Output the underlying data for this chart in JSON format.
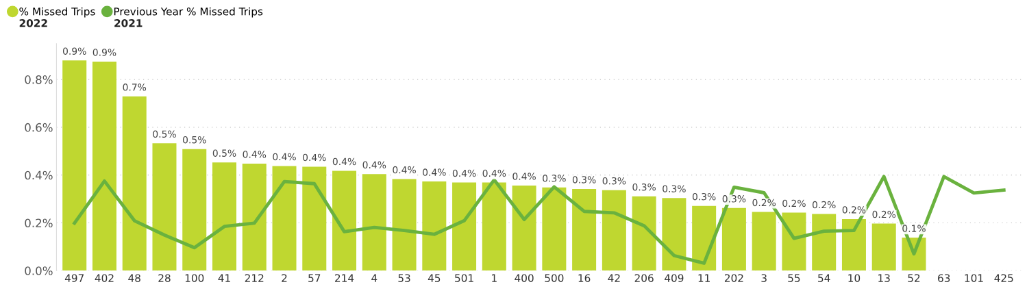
{
  "chart_data": {
    "type": "bar",
    "categories": [
      "497",
      "402",
      "48",
      "28",
      "100",
      "41",
      "212",
      "2",
      "57",
      "214",
      "4",
      "53",
      "45",
      "501",
      "1",
      "400",
      "500",
      "16",
      "42",
      "206",
      "409",
      "11",
      "202",
      "3",
      "55",
      "54",
      "10",
      "13",
      "52",
      "63",
      "101",
      "425"
    ],
    "series": [
      {
        "name": "% Missed Trips",
        "color": "#bfd730",
        "values": [
          0.88,
          0.875,
          0.729,
          0.533,
          0.509,
          0.453,
          0.448,
          0.438,
          0.435,
          0.418,
          0.404,
          0.383,
          0.373,
          0.369,
          0.369,
          0.356,
          0.348,
          0.342,
          0.337,
          0.311,
          0.304,
          0.271,
          0.262,
          0.246,
          0.243,
          0.237,
          0.216,
          0.197,
          0.138,
          null,
          null,
          null
        ],
        "value_labels": [
          "0.9%",
          "0.9%",
          "0.7%",
          "0.5%",
          "0.5%",
          "0.5%",
          "0.4%",
          "0.4%",
          "0.4%",
          "0.4%",
          "0.4%",
          "0.4%",
          "0.4%",
          "0.4%",
          "0.4%",
          "0.4%",
          "0.3%",
          "0.3%",
          "0.3%",
          "0.3%",
          "0.3%",
          "0.3%",
          "0.3%",
          "0.2%",
          "0.2%",
          "0.2%",
          "0.2%",
          "0.2%",
          "0.1%",
          null,
          null,
          null
        ]
      },
      {
        "name": "Previous Year % Missed Trips",
        "type": "line",
        "color": "#6ab23e",
        "values": [
          0.199,
          0.375,
          0.209,
          0.149,
          0.096,
          0.185,
          0.199,
          0.373,
          0.364,
          0.163,
          0.181,
          0.168,
          0.152,
          0.209,
          0.38,
          0.214,
          0.351,
          0.248,
          0.242,
          0.188,
          0.063,
          0.031,
          0.349,
          0.326,
          0.135,
          0.165,
          0.168,
          0.394,
          0.07,
          0.394,
          0.325,
          0.337
        ]
      }
    ],
    "annotations": [
      "2022",
      "2021"
    ],
    "ylim": [
      0,
      0.95
    ],
    "yticks": [
      {
        "value": 0,
        "label": "0.0%"
      },
      {
        "value": 0.2,
        "label": "0.2%"
      },
      {
        "value": 0.4,
        "label": "0.4%"
      },
      {
        "value": 0.6,
        "label": "0.6%"
      },
      {
        "value": 0.8,
        "label": "0.8%"
      }
    ],
    "grid": "y",
    "legend": "top left",
    "marker": "none",
    "line_style": "solid"
  }
}
